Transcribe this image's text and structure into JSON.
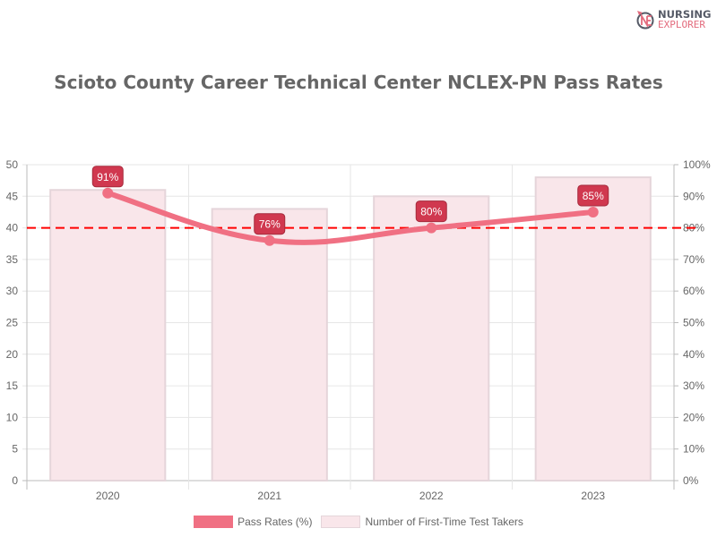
{
  "logo": {
    "line1": "NURSING",
    "line2": "EXPLORER"
  },
  "chart_data": {
    "type": "bar+line",
    "title": "Scioto County Career Technical Center NCLEX-PN Pass Rates",
    "categories": [
      "2020",
      "2021",
      "2022",
      "2023"
    ],
    "series": [
      {
        "name": "Pass Rates (%)",
        "type": "line",
        "axis": "right",
        "values": [
          91,
          76,
          80,
          85
        ],
        "color": "#f07083",
        "data_labels": [
          "91%",
          "76%",
          "80%",
          "85%"
        ]
      },
      {
        "name": "Number of First-Time Test Takers",
        "type": "bar",
        "axis": "left",
        "values": [
          46,
          43,
          45,
          48
        ],
        "color": "#f9e6ea"
      }
    ],
    "left_axis": {
      "range": [
        0,
        50
      ],
      "ticks": [
        "0",
        "5",
        "10",
        "15",
        "20",
        "25",
        "30",
        "35",
        "40",
        "45",
        "50"
      ]
    },
    "right_axis": {
      "range": [
        0,
        100
      ],
      "ticks": [
        "0%",
        "10%",
        "20%",
        "30%",
        "40%",
        "50%",
        "60%",
        "70%",
        "80%",
        "90%",
        "100%"
      ]
    },
    "reference_line": {
      "value_percent": 80,
      "color": "#ff0000",
      "style": "dashed"
    },
    "grid": true,
    "legend_position": "bottom"
  }
}
